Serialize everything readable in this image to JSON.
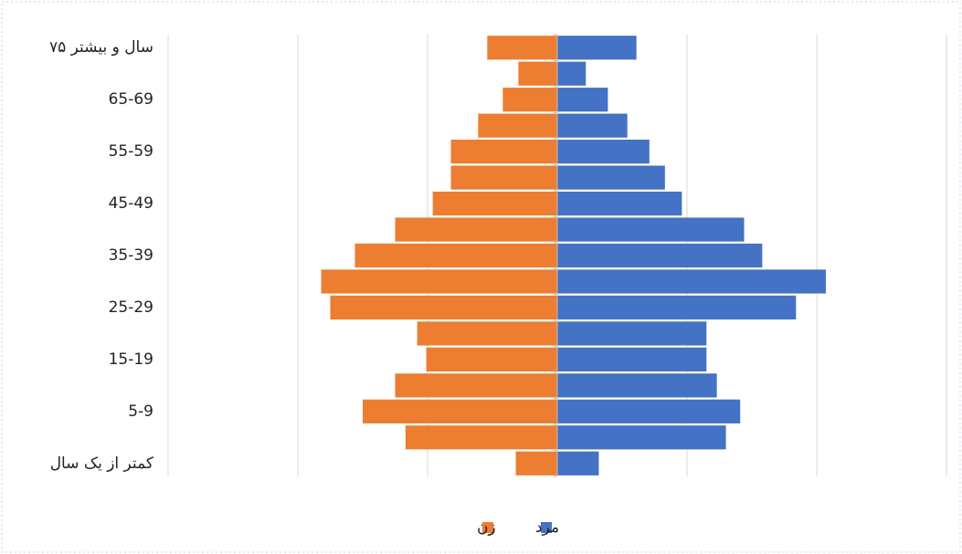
{
  "chart_data": {
    "type": "pyramid",
    "categories": [
      "۷۵ سال و بیشتر",
      null,
      "65-69",
      null,
      "55-59",
      null,
      "45-49",
      null,
      "35-39",
      null,
      "25-29",
      null,
      "15-19",
      null,
      "5-9",
      null,
      "کمتر از یک سال"
    ],
    "series": [
      {
        "name": "مرد",
        "color": "#4472c4",
        "values": [
          0.61,
          0.22,
          0.39,
          0.54,
          0.71,
          0.83,
          0.96,
          1.44,
          1.58,
          2.07,
          1.84,
          1.15,
          1.15,
          1.23,
          1.41,
          1.3,
          0.32
        ]
      },
      {
        "name": "زن",
        "color": "#ed7d31",
        "values": [
          -0.54,
          -0.3,
          -0.42,
          -0.61,
          -0.82,
          -0.82,
          -0.96,
          -1.25,
          -1.56,
          -1.82,
          -1.75,
          -1.08,
          -1.01,
          -1.25,
          -1.5,
          -1.17,
          -0.32
        ]
      }
    ],
    "xlim": [
      -3,
      3
    ],
    "xticks": [
      -3,
      -2,
      -1,
      0,
      1,
      2,
      3
    ],
    "grid": true,
    "legend": "bottom"
  }
}
